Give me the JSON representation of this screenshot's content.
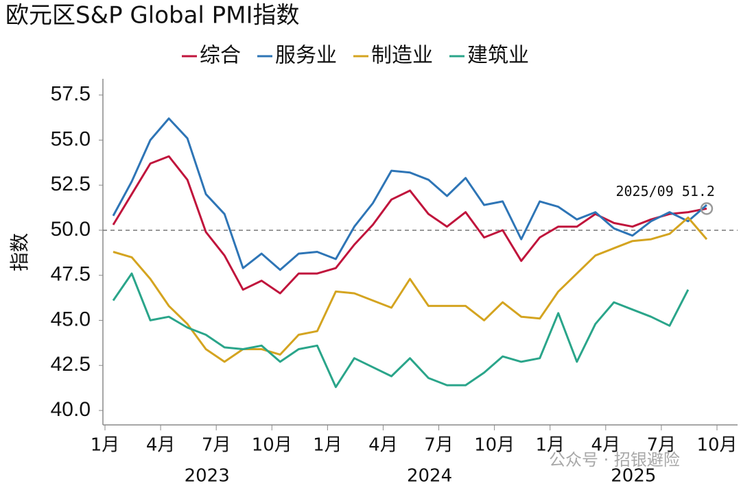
{
  "chart_data": {
    "type": "line",
    "title": "欧元区S&P Global PMI指数",
    "y_label": "指数",
    "categories": [
      "1月",
      null,
      null,
      "4月",
      null,
      null,
      "7月",
      null,
      null,
      "10月",
      null,
      null,
      "1月",
      null,
      null,
      "4月",
      null,
      null,
      "7月",
      null,
      null,
      "10月",
      null,
      null,
      "1月",
      null,
      null,
      "4月",
      null,
      null,
      "7月",
      null,
      null,
      "10月"
    ],
    "years": [
      "2023",
      "2024",
      "2025"
    ],
    "series": [
      {
        "name": "综合",
        "color": "#c0143c",
        "values": [
          50.3,
          52.0,
          53.7,
          54.1,
          52.8,
          49.9,
          48.6,
          46.7,
          47.2,
          46.5,
          47.6,
          47.6,
          47.9,
          49.2,
          50.3,
          51.7,
          52.2,
          50.9,
          50.2,
          51.0,
          49.6,
          50.0,
          48.3,
          49.6,
          50.2,
          50.2,
          50.9,
          50.4,
          50.2,
          50.6,
          50.9,
          51.0,
          51.2,
          null
        ]
      },
      {
        "name": "服务业",
        "color": "#2e75b6",
        "values": [
          50.8,
          52.7,
          55.0,
          56.2,
          55.1,
          52.0,
          50.9,
          47.9,
          48.7,
          47.8,
          48.7,
          48.8,
          48.4,
          50.2,
          51.5,
          53.3,
          53.2,
          52.8,
          51.9,
          52.9,
          51.4,
          51.6,
          49.5,
          51.6,
          51.3,
          50.6,
          51.0,
          50.1,
          49.7,
          50.5,
          51.0,
          50.5,
          51.4,
          null
        ]
      },
      {
        "name": "制造业",
        "color": "#d4a420",
        "values": [
          48.8,
          48.5,
          47.3,
          45.8,
          44.8,
          43.4,
          42.7,
          43.4,
          43.4,
          43.1,
          44.2,
          44.4,
          46.6,
          46.5,
          46.1,
          45.7,
          47.3,
          45.8,
          45.8,
          45.8,
          45.0,
          46.0,
          45.2,
          45.1,
          46.6,
          47.6,
          48.6,
          49.0,
          49.4,
          49.5,
          49.8,
          50.7,
          49.5,
          null
        ]
      },
      {
        "name": "建筑业",
        "color": "#2aa58a",
        "values": [
          46.1,
          47.6,
          45.0,
          45.2,
          44.6,
          44.2,
          43.5,
          43.4,
          43.6,
          42.7,
          43.4,
          43.6,
          41.3,
          42.9,
          42.4,
          41.9,
          42.9,
          41.8,
          41.4,
          41.4,
          42.1,
          43.0,
          42.7,
          42.9,
          45.4,
          42.7,
          44.8,
          46.0,
          45.6,
          45.2,
          44.7,
          46.7,
          null,
          null
        ]
      }
    ],
    "ylim": [
      39.2,
      58.4
    ],
    "yticks": [
      {
        "value": 40,
        "label": "40.0"
      },
      {
        "value": 42.5,
        "label": "42.5"
      },
      {
        "value": 45,
        "label": "45.0"
      },
      {
        "value": 47.5,
        "label": "47.5"
      },
      {
        "value": 50,
        "label": "50.0"
      },
      {
        "value": 52.5,
        "label": "52.5"
      },
      {
        "value": 55,
        "label": "55.0"
      },
      {
        "value": 57.5,
        "label": "57.5"
      }
    ],
    "reference_line": 50,
    "annotation": "2025/09  51.2",
    "watermark": "公众号 · 招银避险",
    "legend": "top"
  }
}
